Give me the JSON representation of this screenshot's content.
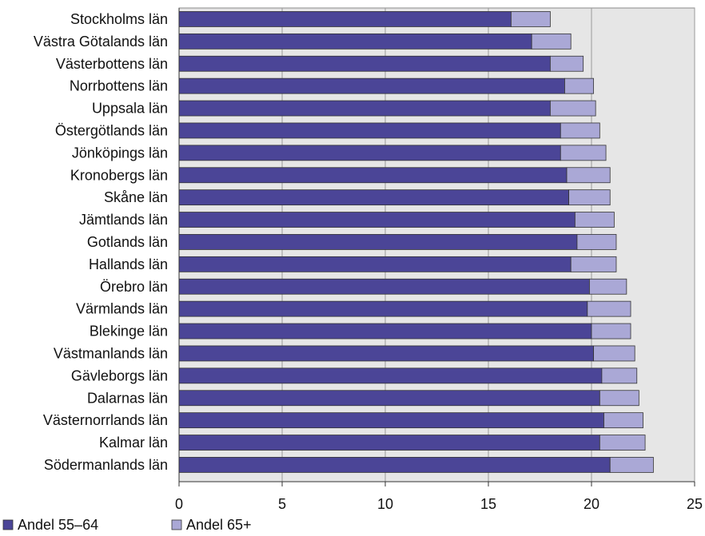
{
  "chart_data": {
    "type": "bar",
    "orientation": "horizontal",
    "stacked": true,
    "title": "",
    "xlabel": "",
    "ylabel": "",
    "xlim": [
      0,
      25
    ],
    "xticks": [
      0,
      5,
      10,
      15,
      20,
      25
    ],
    "grid": true,
    "legend_position": "bottom-left",
    "categories": [
      "Stockholms län",
      "Västra Götalands län",
      "Västerbottens län",
      "Norrbottens län",
      "Uppsala län",
      "Östergötlands län",
      "Jönköpings län",
      "Kronobergs län",
      "Skåne län",
      "Jämtlands län",
      "Gotlands län",
      "Hallands län",
      "Örebro län",
      "Värmlands län",
      "Blekinge län",
      "Västmanlands län",
      "Gävleborgs län",
      "Dalarnas län",
      "Västernorrlands län",
      "Kalmar län",
      "Södermanlands län"
    ],
    "series": [
      {
        "name": "Andel 55–64",
        "color": "#4b4597",
        "values": [
          16.1,
          17.1,
          18.0,
          18.7,
          18.0,
          18.5,
          18.5,
          18.8,
          18.9,
          19.2,
          19.3,
          19.0,
          19.9,
          19.8,
          20.0,
          20.1,
          20.5,
          20.4,
          20.6,
          20.4,
          20.9
        ]
      },
      {
        "name": "Andel 65+",
        "color": "#aaa8d6",
        "values": [
          1.9,
          1.9,
          1.6,
          1.4,
          2.2,
          1.9,
          2.2,
          2.1,
          2.0,
          1.9,
          1.9,
          2.2,
          1.8,
          2.1,
          1.9,
          2.0,
          1.7,
          1.9,
          1.9,
          2.2,
          2.1
        ]
      }
    ],
    "colors": {
      "plot_background": "#e6e6e6",
      "gridline": "#999999",
      "bar_outline": "#333333"
    }
  }
}
